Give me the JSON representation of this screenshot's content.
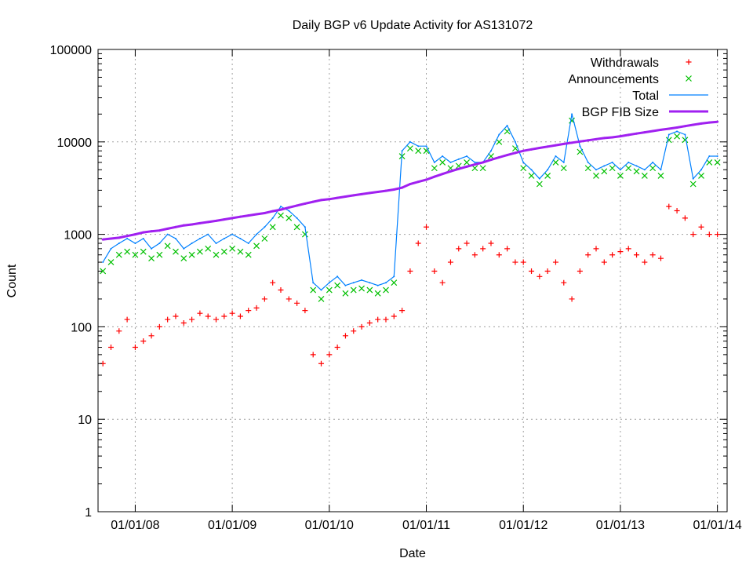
{
  "chart_data": {
    "type": "scatter",
    "title": "Daily BGP v6 Update Activity for AS131072",
    "xlabel": "Date",
    "ylabel": "Count",
    "yscale": "log",
    "ylim": [
      1,
      100000
    ],
    "xlim": [
      "2007-09",
      "2014-02"
    ],
    "grid": true,
    "legend_position": "top-right",
    "x_ticks": [
      "01/01/08",
      "01/01/09",
      "01/01/10",
      "01/01/11",
      "01/01/12",
      "01/01/13",
      "01/01/14"
    ],
    "x_tick_dates": [
      "2008-01",
      "2009-01",
      "2010-01",
      "2011-01",
      "2012-01",
      "2013-01",
      "2014-01"
    ],
    "y_ticks": [
      "1",
      "10",
      "100",
      "1000",
      "10000",
      "100000"
    ],
    "x": [
      "2007-09",
      "2007-10",
      "2007-11",
      "2007-12",
      "2008-01",
      "2008-02",
      "2008-03",
      "2008-04",
      "2008-05",
      "2008-06",
      "2008-07",
      "2008-08",
      "2008-09",
      "2008-10",
      "2008-11",
      "2008-12",
      "2009-01",
      "2009-02",
      "2009-03",
      "2009-04",
      "2009-05",
      "2009-06",
      "2009-07",
      "2009-08",
      "2009-09",
      "2009-10",
      "2009-11",
      "2009-12",
      "2010-01",
      "2010-02",
      "2010-03",
      "2010-04",
      "2010-05",
      "2010-06",
      "2010-07",
      "2010-08",
      "2010-09",
      "2010-10",
      "2010-11",
      "2010-12",
      "2011-01",
      "2011-02",
      "2011-03",
      "2011-04",
      "2011-05",
      "2011-06",
      "2011-07",
      "2011-08",
      "2011-09",
      "2011-10",
      "2011-11",
      "2011-12",
      "2012-01",
      "2012-02",
      "2012-03",
      "2012-04",
      "2012-05",
      "2012-06",
      "2012-07",
      "2012-08",
      "2012-09",
      "2012-10",
      "2012-11",
      "2012-12",
      "2013-01",
      "2013-02",
      "2013-03",
      "2013-04",
      "2013-05",
      "2013-06",
      "2013-07",
      "2013-08",
      "2013-09",
      "2013-10",
      "2013-11",
      "2013-12",
      "2014-01"
    ],
    "series": [
      {
        "name": "Withdrawals",
        "style": "points-plus",
        "color": "#ff0000",
        "values": [
          40,
          60,
          90,
          120,
          60,
          70,
          80,
          100,
          120,
          130,
          110,
          120,
          140,
          130,
          120,
          130,
          140,
          130,
          150,
          160,
          200,
          300,
          250,
          200,
          180,
          150,
          50,
          40,
          50,
          60,
          80,
          90,
          100,
          110,
          120,
          120,
          130,
          150,
          400,
          800,
          1200,
          400,
          300,
          500,
          700,
          800,
          600,
          700,
          800,
          600,
          700,
          500,
          500,
          400,
          350,
          400,
          500,
          300,
          200,
          400,
          600,
          700,
          500,
          600,
          650,
          700,
          600,
          500,
          600,
          550,
          2000,
          1800,
          1500,
          1000,
          1200,
          1000,
          1000
        ]
      },
      {
        "name": "Announcements",
        "style": "points-cross",
        "color": "#00c000",
        "values": [
          400,
          500,
          600,
          650,
          600,
          650,
          550,
          600,
          750,
          650,
          550,
          600,
          650,
          700,
          600,
          650,
          700,
          650,
          600,
          750,
          900,
          1200,
          1600,
          1500,
          1200,
          1000,
          250,
          200,
          250,
          280,
          230,
          250,
          260,
          250,
          230,
          250,
          300,
          7000,
          8500,
          8000,
          8000,
          5200,
          6000,
          5200,
          5500,
          6000,
          5200,
          5200,
          7000,
          10000,
          13000,
          8500,
          5200,
          4300,
          3500,
          4300,
          6000,
          5200,
          17000,
          7800,
          5200,
          4300,
          4800,
          5200,
          4300,
          5200,
          4800,
          4300,
          5200,
          4300,
          10500,
          11500,
          10500,
          3500,
          4300,
          6000,
          6000
        ]
      },
      {
        "name": "Total",
        "style": "line",
        "color": "#0080ff",
        "values": [
          500,
          700,
          800,
          900,
          800,
          900,
          700,
          800,
          1000,
          900,
          700,
          800,
          900,
          1000,
          800,
          900,
          1000,
          900,
          800,
          1000,
          1200,
          1500,
          2000,
          1800,
          1500,
          1200,
          300,
          250,
          300,
          350,
          280,
          300,
          320,
          300,
          280,
          300,
          350,
          8000,
          10000,
          9000,
          9000,
          6000,
          7000,
          6000,
          6500,
          7000,
          6000,
          6000,
          8000,
          12000,
          15000,
          10000,
          6000,
          5000,
          4000,
          5000,
          7000,
          6000,
          20000,
          9000,
          6000,
          5000,
          5500,
          6000,
          5000,
          6000,
          5500,
          5000,
          6000,
          5000,
          12000,
          13000,
          12000,
          4000,
          5000,
          7000,
          7000
        ]
      },
      {
        "name": "BGP FIB Size",
        "style": "thick-line",
        "color": "#a020f0",
        "values": [
          880,
          900,
          920,
          960,
          1000,
          1050,
          1080,
          1100,
          1150,
          1200,
          1250,
          1280,
          1320,
          1360,
          1400,
          1450,
          1500,
          1550,
          1600,
          1650,
          1700,
          1780,
          1850,
          1950,
          2050,
          2150,
          2250,
          2350,
          2400,
          2480,
          2560,
          2640,
          2720,
          2800,
          2880,
          2960,
          3050,
          3200,
          3500,
          3700,
          3900,
          4200,
          4500,
          4800,
          5100,
          5400,
          5700,
          6000,
          6400,
          6800,
          7200,
          7600,
          8000,
          8300,
          8600,
          8900,
          9200,
          9500,
          9800,
          10100,
          10400,
          10700,
          11000,
          11200,
          11500,
          11900,
          12300,
          12700,
          13100,
          13500,
          13900,
          14300,
          14800,
          15300,
          15800,
          16200,
          16500
        ]
      }
    ]
  }
}
